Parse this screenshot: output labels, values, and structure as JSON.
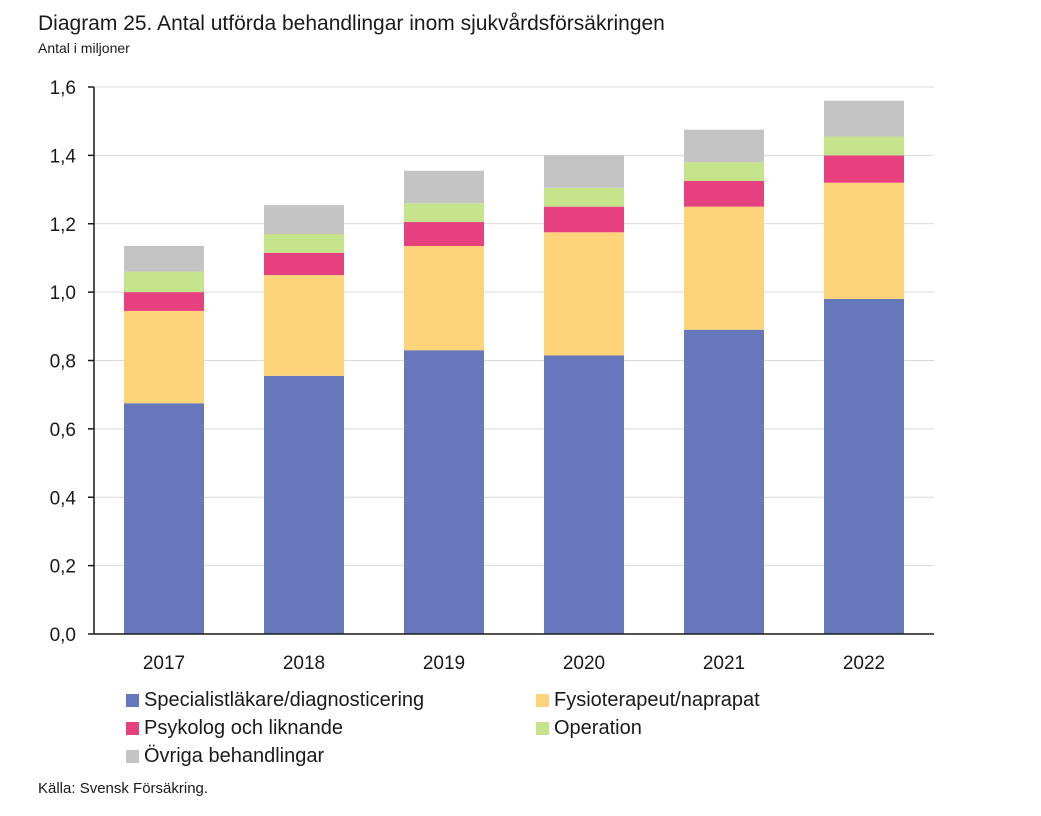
{
  "title": "Diagram 25. Antal utförda behandlingar inom sjukvårdsförsäkringen",
  "subtitle": "Antal i miljoner",
  "source": "Källa: Svensk Försäkring.",
  "chart_data": {
    "type": "bar",
    "stacked": true,
    "title": "Diagram 25. Antal utförda behandlingar inom sjukvårdsförsäkringen",
    "ylabel": "Antal i miljoner",
    "xlabel": "",
    "ylim": [
      0,
      1.6
    ],
    "yticks": [
      "0,0",
      "0,2",
      "0,4",
      "0,6",
      "0,8",
      "1,0",
      "1,2",
      "1,4",
      "1,6"
    ],
    "grid": true,
    "legend_position": "bottom",
    "categories": [
      "2017",
      "2018",
      "2019",
      "2020",
      "2021",
      "2022"
    ],
    "series": [
      {
        "name": "Specialistläkare/diagnosticering",
        "color": "#6677BB",
        "values": [
          0.675,
          0.755,
          0.83,
          0.815,
          0.89,
          0.98
        ]
      },
      {
        "name": "Fysioterapeut/naprapat",
        "color": "#FDD479",
        "values": [
          0.27,
          0.295,
          0.305,
          0.36,
          0.36,
          0.34
        ]
      },
      {
        "name": "Psykolog och liknande",
        "color": "#E6407E",
        "values": [
          0.055,
          0.065,
          0.07,
          0.075,
          0.075,
          0.08
        ]
      },
      {
        "name": "Operation",
        "color": "#C5E38A",
        "values": [
          0.06,
          0.055,
          0.055,
          0.055,
          0.055,
          0.055
        ]
      },
      {
        "name": "Övriga behandlingar",
        "color": "#C4C4C4",
        "values": [
          0.075,
          0.085,
          0.095,
          0.095,
          0.095,
          0.105
        ]
      }
    ]
  }
}
